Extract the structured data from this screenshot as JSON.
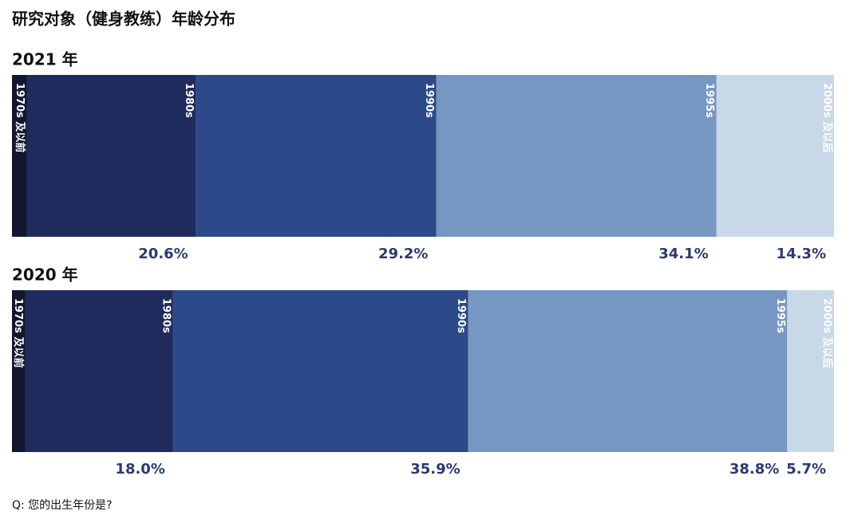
{
  "title": "研究对象（健身教练）年龄分布",
  "chart_data": [
    {
      "type": "stacked-bar",
      "title": "2021 年",
      "categories": [
        "1970s 及以前",
        "1980s",
        "1990s",
        "1995s",
        "2000s 及以后"
      ],
      "values": [
        1.8,
        20.6,
        29.2,
        34.1,
        14.3
      ],
      "value_labels": [
        null,
        "20.6%",
        "29.2%",
        "34.1%",
        "14.3%"
      ],
      "colors": [
        "#12162f",
        "#1f2b5c",
        "#2c4a8a",
        "#7697c2",
        "#c8d8e8"
      ]
    },
    {
      "type": "stacked-bar",
      "title": "2020 年",
      "categories": [
        "1970s 及以前",
        "1980s",
        "1990s",
        "1995s",
        "2000s 及以后"
      ],
      "values": [
        1.6,
        18.0,
        35.9,
        38.8,
        5.7
      ],
      "value_labels": [
        null,
        "18.0%",
        "35.9%",
        "38.8%",
        "5.7%"
      ],
      "colors": [
        "#12162f",
        "#1f2b5c",
        "#2c4a8a",
        "#7697c2",
        "#c8d8e8"
      ]
    }
  ],
  "footnote": "Q: 您的出生年份是?"
}
